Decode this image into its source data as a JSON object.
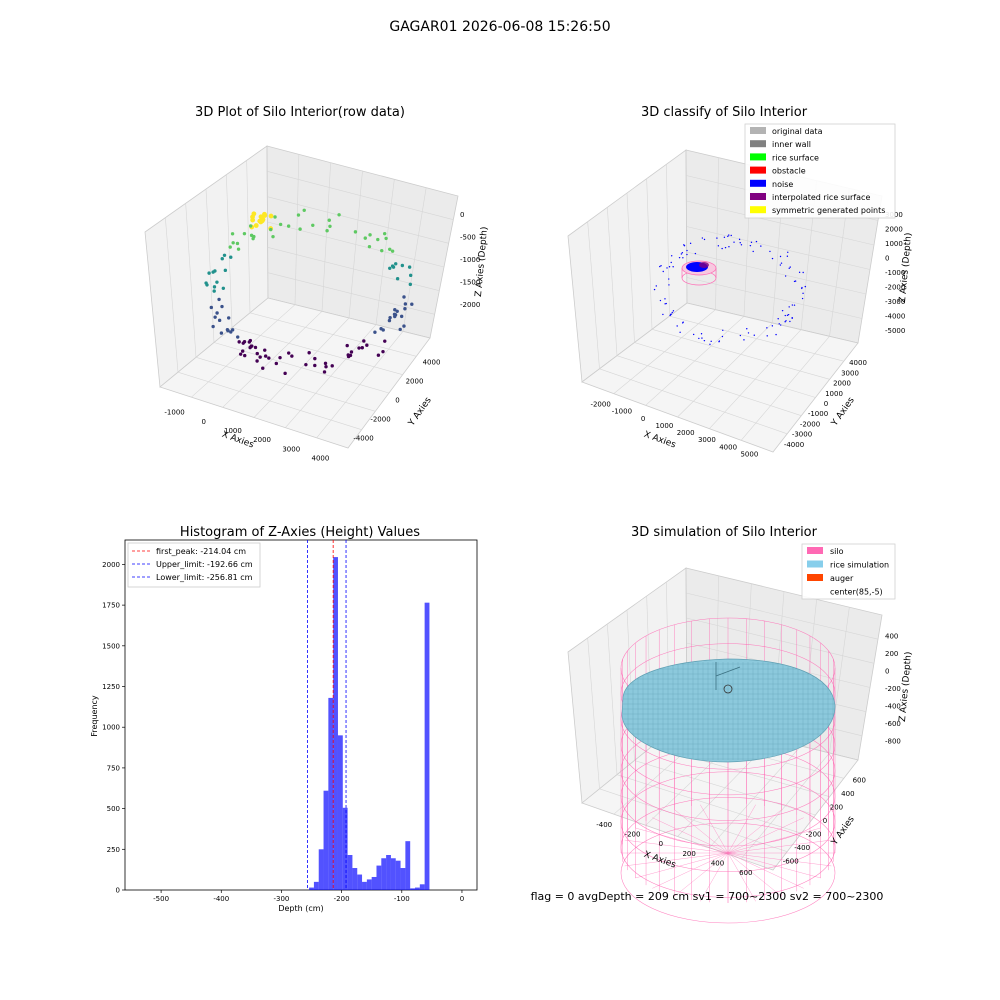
{
  "suptitle": "GAGAR01 2026-06-08 15:26:50",
  "status_text": "flag = 0     avgDepth = 209 cm  sv1 = 700~2300  sv2 = 700~2300",
  "chart_data": [
    {
      "type": "scatter",
      "subtype": "3d-scatter",
      "title": "3D Plot of Silo Interior(row data)",
      "xlabel": "X Axies",
      "ylabel": "Y Axies",
      "zlabel": "Z Axies (Depth)",
      "xticks": [
        "-1000",
        "0",
        "1000",
        "2000",
        "3000",
        "4000"
      ],
      "yticks": [
        "-4000",
        "-2000",
        "0",
        "2000",
        "4000"
      ],
      "zticks": [
        "0",
        "-500",
        "-1000",
        "-1500",
        "-2000"
      ],
      "grid": true,
      "colormap": [
        "#440154",
        "#3b528b",
        "#21918c",
        "#5ec962",
        "#fde725"
      ]
    },
    {
      "type": "scatter",
      "subtype": "3d-classification",
      "title": "3D classify of Silo Interior",
      "xlabel": "X Axies",
      "ylabel": "Y Axies",
      "zlabel": "Z Axies (Depth)",
      "xticks": [
        "-2000",
        "-1000",
        "0",
        "1000",
        "2000",
        "3000",
        "4000",
        "5000"
      ],
      "yticks": [
        "-4000",
        "-3000",
        "-2000",
        "-1000",
        "0",
        "1000",
        "2000",
        "3000",
        "4000"
      ],
      "zticks": [
        "3000",
        "2000",
        "1000",
        "0",
        "-1000",
        "-2000",
        "-3000",
        "-4000",
        "-5000"
      ],
      "legend_position": "upper-right",
      "legend": [
        {
          "label": "original data",
          "color": "#b3b3b3"
        },
        {
          "label": "inner wall",
          "color": "#808080"
        },
        {
          "label": "rice surface",
          "color": "#00ff00"
        },
        {
          "label": "obstacle",
          "color": "#ff0000"
        },
        {
          "label": "noise",
          "color": "#0000ff"
        },
        {
          "label": "interpolated rice surface",
          "color": "#800080"
        },
        {
          "label": "symmetric generated points",
          "color": "#ffff00"
        }
      ]
    },
    {
      "type": "bar",
      "subtype": "histogram",
      "title": "Histogram of Z-Axies (Height) Values",
      "xlabel": "Depth (cm)",
      "ylabel": "Frequency",
      "xlim": [
        -560,
        25
      ],
      "ylim": [
        0,
        2150
      ],
      "xticks": [
        -500,
        -400,
        -300,
        -200,
        -100,
        0
      ],
      "yticks": [
        0,
        250,
        500,
        750,
        1000,
        1250,
        1500,
        1750,
        2000
      ],
      "bin_width": 8,
      "bins": [
        {
          "x": -284,
          "y": 15
        },
        {
          "x": -276,
          "y": 50
        },
        {
          "x": -268,
          "y": 250
        },
        {
          "x": -260,
          "y": 610
        },
        {
          "x": -252,
          "y": 1180
        },
        {
          "x": -244,
          "y": 2045
        },
        {
          "x": -236,
          "y": 950
        },
        {
          "x": -228,
          "y": 505
        },
        {
          "x": -220,
          "y": 215
        },
        {
          "x": -212,
          "y": 135
        },
        {
          "x": -204,
          "y": 95
        },
        {
          "x": -196,
          "y": 50
        },
        {
          "x": -188,
          "y": 65
        },
        {
          "x": -180,
          "y": 80
        },
        {
          "x": -172,
          "y": 150
        },
        {
          "x": -164,
          "y": 195
        },
        {
          "x": -156,
          "y": 215
        },
        {
          "x": -148,
          "y": 195
        },
        {
          "x": -140,
          "y": 180
        },
        {
          "x": -132,
          "y": 135
        },
        {
          "x": -124,
          "y": 300
        },
        {
          "x": -116,
          "y": 10
        },
        {
          "x": -108,
          "y": 15
        },
        {
          "x": -100,
          "y": 35
        },
        {
          "x": -92,
          "y": 1765
        }
      ],
      "bar_color": "#0000ff",
      "lines": [
        {
          "label": "first_peak: -214.04 cm",
          "x": -214.04,
          "color": "#ff0000"
        },
        {
          "label": "Upper_limit: -192.66 cm",
          "x": -192.66,
          "color": "#0000ff"
        },
        {
          "label": "Lower_limit: -256.81 cm",
          "x": -256.81,
          "color": "#0000ff"
        }
      ],
      "legend_position": "upper-left"
    },
    {
      "type": "scatter",
      "subtype": "3d-surface-simulation",
      "title": "3D simulation of Silo Interior",
      "xlabel": "X Axies",
      "ylabel": "Y Axies",
      "zlabel": "Z Axies (Depth)",
      "xticks": [
        "-400",
        "-200",
        "0",
        "200",
        "400",
        "600"
      ],
      "yticks": [
        "-600",
        "-400",
        "-200",
        "0",
        "200",
        "400",
        "600"
      ],
      "zticks": [
        "400",
        "200",
        "0",
        "-200",
        "-400",
        "-600",
        "-800"
      ],
      "legend_position": "upper-right",
      "legend": [
        {
          "label": "silo",
          "color": "#ff69b4"
        },
        {
          "label": "rice simulation",
          "color": "#87ceeb"
        },
        {
          "label": "auger",
          "color": "#ff4500"
        },
        {
          "label": "center(85,-5)",
          "color": ""
        }
      ]
    }
  ]
}
